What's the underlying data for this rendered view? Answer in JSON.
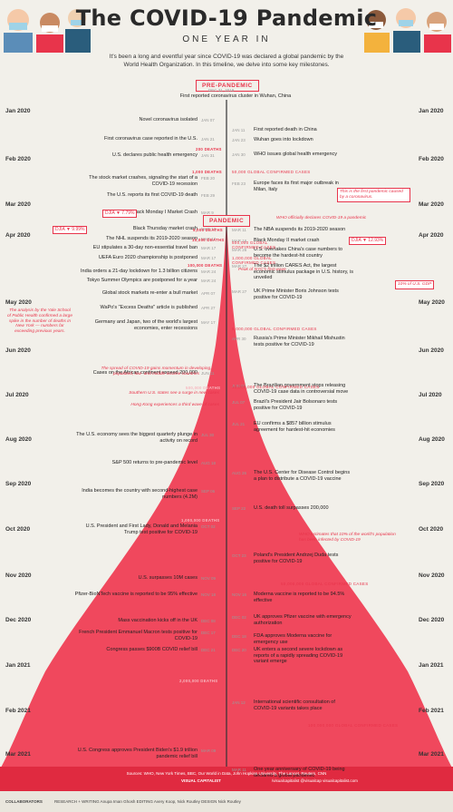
{
  "header": {
    "title": "The COVID-19 Pandemic",
    "subtitle": "ONE YEAR IN",
    "intro": "It's been a long and eventful year since COVID-19 was declared a global pandemic by the World Health Organization. In this timeline, we delve into some key milestones."
  },
  "phases": {
    "pre": "PRE-PANDEMIC",
    "pandemic": "PANDEMIC"
  },
  "months": [
    "Jan 2020",
    "Feb 2020",
    "Mar 2020",
    "Apr 2020",
    "May 2020",
    "Jun 2020",
    "Jul 2020",
    "Aug 2020",
    "Sep 2020",
    "Oct 2020",
    "Nov 2020",
    "Dec 2020",
    "Jan 2021",
    "Feb 2021",
    "Mar 2021"
  ],
  "events_left": [
    {
      "text": "Novel coronavirus isolated",
      "date": "JAN 07"
    },
    {
      "text": "First coronavirus case reported in the U.S.",
      "date": "JAN 21"
    },
    {
      "text": "U.S. declares public health emergency",
      "date": "JAN 31"
    },
    {
      "text": "The stock market crashes, signaling the start of a COVID-19 recession",
      "date": "FEB 20"
    },
    {
      "text": "The U.S. reports its first COVID-19 death",
      "date": "FEB 29"
    },
    {
      "text": "Black Monday I Market Crash",
      "date": "MAR 9"
    },
    {
      "text": "Black Thursday market crash",
      "date": "MAR 12"
    },
    {
      "text": "The NHL suspends its 2019-2020 season",
      "date": "MAR 12"
    },
    {
      "text": "EU stipulates a 30-day non-essential travel ban",
      "date": "MAR 17"
    },
    {
      "text": "UEFA Euro 2020 championship is postponed",
      "date": "MAR 17"
    },
    {
      "text": "India orders a 21-day lockdown for 1.3 billion citizens",
      "date": "MAR 24"
    },
    {
      "text": "Tokyo Summer Olympics are postponed for a year",
      "date": "MAR 24"
    },
    {
      "text": "Global stock markets re-enter a bull market",
      "date": "APR 07"
    },
    {
      "text": "WaPo's \"Excess Deaths\" article is published",
      "date": "APR 27"
    },
    {
      "text": "Germany and Japan, two of the world's largest economies, enter recessions",
      "date": "MAY 17"
    },
    {
      "text": "Cases on the African continent exceed 200,000",
      "date": "JUN 11"
    },
    {
      "text": "The U.S. economy sees the biggest quarterly plunge in activity on record",
      "date": "JUL 30"
    },
    {
      "text": "S&P 500 returns to pre-pandemic level",
      "date": "AUG 18"
    },
    {
      "text": "India becomes the country with second-highest case numbers (4.2M)",
      "date": "SEP 06"
    },
    {
      "text": "U.S. President and First Lady, Donald and Melania Trump test positive for COVID-19",
      "date": "OCT 02"
    },
    {
      "text": "U.S. surpasses 10M cases",
      "date": "NOV 09"
    },
    {
      "text": "Pfizer-BioNTech vaccine is reported to be 95% effective",
      "date": "NOV 18"
    },
    {
      "text": "Mass vaccination kicks off in the UK",
      "date": "DEC 08"
    },
    {
      "text": "French President Emmanuel Macron tests positive for COVID-19",
      "date": "DEC 17"
    },
    {
      "text": "Congress passes $900B COVID relief bill",
      "date": "DEC 21"
    },
    {
      "text": "U.S. Congress approves President Biden's $1.9 trillion pandemic relief bill",
      "date": "MAR 09"
    }
  ],
  "events_right": [
    {
      "text": "First reported coronavirus cluster in Wuhan, China",
      "date": "DEC 31, 2019"
    },
    {
      "text": "First reported death in China",
      "date": "JAN 11"
    },
    {
      "text": "Wuhan goes into lockdown",
      "date": "JAN 23"
    },
    {
      "text": "WHO issues global health emergency",
      "date": "JAN 30"
    },
    {
      "text": "Europe faces its first major outbreak in Milan, Italy",
      "date": "FEB 23"
    },
    {
      "text": "The NBA suspends its 2019-2020 season",
      "date": "MAR 11"
    },
    {
      "text": "Black Monday II market crash",
      "date": "MAR 16"
    },
    {
      "text": "U.S. overtakes China's case numbers to become the hardest-hit country",
      "date": "MAR 26"
    },
    {
      "text": "The $2 trillion CARES Act, the largest economic stimulus package in U.S. history, is unveiled",
      "date": "MAR 27"
    },
    {
      "text": "UK Prime Minister Boris Johnson tests positive for COVID-19",
      "date": "MAR 27"
    },
    {
      "text": "Russia's Prime Minister Mikhail Mishustin tests positive for COVID-19",
      "date": "APR 30"
    },
    {
      "text": "The Brazilian government stops releasing COVID-19 case data in controversial move",
      "date": "JUN 07"
    },
    {
      "text": "Brazil's President Jair Bolsonaro tests positive for COVID-19",
      "date": "JUL 07"
    },
    {
      "text": "EU confirms a $857 billion stimulus agreement for hardest-hit economies",
      "date": "JUL 21"
    },
    {
      "text": "The U.S. Center for Disease Control begins a plan to distribute a COVID-19 vaccine",
      "date": "AUG 26"
    },
    {
      "text": "U.S. death toll surpasses 200,000",
      "date": "SEP 22"
    },
    {
      "text": "Poland's President Andrzej Duda tests positive for COVID-19",
      "date": "OCT 23"
    },
    {
      "text": "Moderna vaccine is reported to be 94.5% effective",
      "date": "NOV 16"
    },
    {
      "text": "UK approves Pfizer vaccine with emergency authorization",
      "date": "DEC 02"
    },
    {
      "text": "FDA approves Moderna vaccine for emergency use",
      "date": "DEC 18"
    },
    {
      "text": "UK enters a second severe lockdown as reports of a rapidly spreading COVID-19 variant emerge",
      "date": "DEC 20"
    },
    {
      "text": "International scientific consultation of COVID-19 variants takes place",
      "date": "JAN 12"
    },
    {
      "text": "One year anniversary of COVID-19 being declared a global pandemic",
      "date": "MAR 11"
    }
  ],
  "notes": {
    "first_pandemic": "This is the first pandemic caused by a coronavirus.",
    "who_declares": "WHO officially declares COVID-19 a pandemic",
    "nyc_wave": "Peak of NYC's first wave",
    "gdp": "10% of U.S. GDP",
    "yale": "The analysis by the Yale School of Public Health confirmed a large spike in the number of deaths in New York — numbers far exceeding previous years.",
    "spread": "The spread of COVID-19 gains momentum in developing, populated, low- and middle-income countries",
    "southern": "Southern U.S. states see a surge in new cases",
    "hongkong": "Hong Kong experiences a third wave of cases",
    "who_estimate": "WHO estimates that 10% of the world's population has been infected by COVID-19"
  },
  "djia": {
    "d1": "DJIA ▼ 7.79%",
    "d2": "DJIA ▼ 9.99%",
    "d3": "DJIA ▼ 12.93%"
  },
  "deaths": {
    "d200": "200 DEATHS",
    "d1k": "1,000 DEATHS",
    "d5k": "5,000 DEATHS",
    "d10k": "10,000 DEATHS",
    "d100k": "100,000 DEATHS",
    "d500k": "500,000 DEATHS",
    "d1m": "1,000,000 DEATHS",
    "d2m": "2,000,000 DEATHS"
  },
  "cases": {
    "c50k": "50,000 GLOBAL CONFIRMED CASES",
    "c500k": "500,000 GLOBAL CONFIRMED CASES",
    "c1m": "1,000,000 GLOBAL CONFIRMED CASES",
    "c5m": "5,000,000 GLOBAL CONFIRMED CASES",
    "c10m": "10,000,000 GLOBAL CONFIRMED CASES",
    "c50m": "50,000,000 GLOBAL CONFIRMED CASES",
    "c100m": "100,000,000 GLOBAL CONFIRMED CASES"
  },
  "footer": {
    "sources": "Sources: WHO, New York Times, BBC, Our World in Data, John Hopkins University, The Lancet, Reuters, CNN",
    "collaborators": "COLLABORATORS",
    "credits": "RESEARCH + WRITING Anupa Iman Ghosh  EDITING Avery Koop, Nick Routley  DESIGN Nick Routley",
    "logo": "VISUAL CAPITALIST",
    "social": "/visualcapitalist   @visualcap   visualcapitalist.com"
  },
  "colors": {
    "accent": "#e8344b",
    "bg": "#f2f0ea",
    "area": "#f03a50"
  }
}
